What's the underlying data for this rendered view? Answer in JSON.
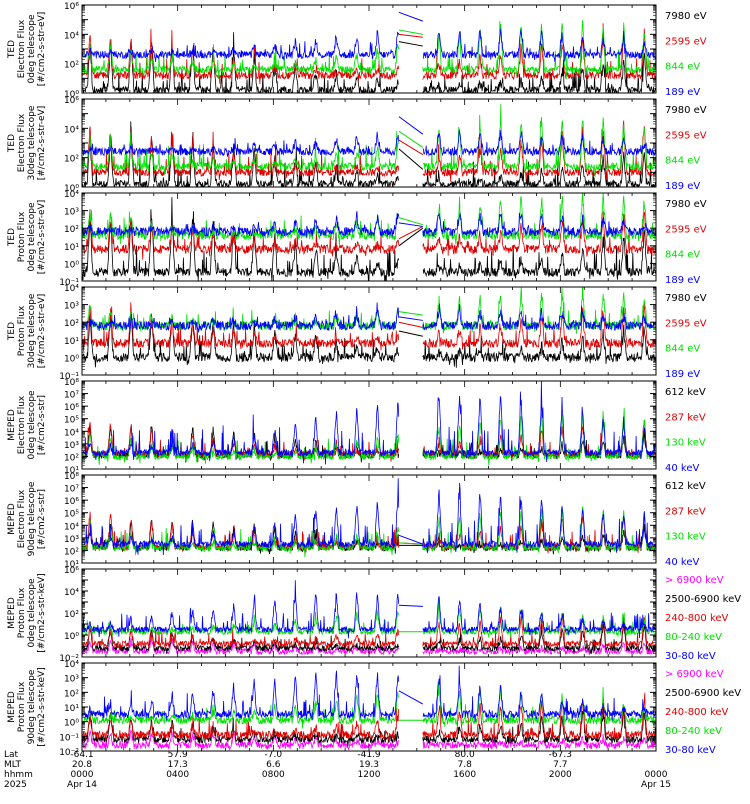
{
  "colors": {
    "black": "#000000",
    "red": "#e00000",
    "green": "#00e000",
    "blue": "#0000ff",
    "magenta": "#ff00ff",
    "axis": "#000000"
  },
  "chart_data": [
    {
      "type": "line",
      "instrument": "TED",
      "ylabel": [
        "TED",
        "Electron Flux",
        "0deg telescope",
        "[#/cm2-s-str-eV]"
      ],
      "yscale": "log",
      "ylim_exp": [
        0,
        6
      ],
      "yticks": [
        "10⁰",
        "10²",
        "10⁴",
        "10⁶"
      ],
      "series": [
        {
          "name": "7980 eV",
          "color": "black",
          "base": 0.2,
          "peak": 3.5,
          "gap_start": 3.5,
          "gap_end": 3.2
        },
        {
          "name": "2595 eV",
          "color": "red",
          "base": 1.2,
          "peak": 4.2,
          "gap_start": 4.0,
          "gap_end": 3.8
        },
        {
          "name": "844 eV",
          "color": "green",
          "base": 1.6,
          "peak": 4.8,
          "gap_start": 4.3,
          "gap_end": 4.0
        },
        {
          "name": "189 eV",
          "color": "blue",
          "base": 2.6,
          "peak": 4.4,
          "gap_start": 5.5,
          "gap_end": 4.9
        }
      ]
    },
    {
      "type": "line",
      "instrument": "TED",
      "ylabel": [
        "TED",
        "Electron Flux",
        "30deg telescope",
        "[#/cm2-s-str-eV]"
      ],
      "yscale": "log",
      "ylim_exp": [
        0,
        6
      ],
      "yticks": [
        "10⁰",
        "10²",
        "10⁴",
        "10⁶"
      ],
      "series": [
        {
          "name": "7980 eV",
          "color": "black",
          "base": 0.2,
          "peak": 3.5,
          "gap_start": 2.6,
          "gap_end": 1.2
        },
        {
          "name": "2595 eV",
          "color": "red",
          "base": 1.0,
          "peak": 4.4,
          "gap_start": 3.2,
          "gap_end": 2.2
        },
        {
          "name": "844 eV",
          "color": "green",
          "base": 1.4,
          "peak": 4.8,
          "gap_start": 3.8,
          "gap_end": 2.7
        },
        {
          "name": "189 eV",
          "color": "blue",
          "base": 2.4,
          "peak": 3.8,
          "gap_start": 4.8,
          "gap_end": 3.6
        }
      ]
    },
    {
      "type": "line",
      "instrument": "TED",
      "ylabel": [
        "TED",
        "Proton Flux",
        "0deg telescope",
        "[#/cm2-s-str-eV]"
      ],
      "yscale": "log",
      "ylim_exp": [
        -1,
        4
      ],
      "yticks": [
        "10⁻¹",
        "10⁰",
        "10¹",
        "10²",
        "10³",
        "10⁴"
      ],
      "series": [
        {
          "name": "7980 eV",
          "color": "black",
          "base": -0.5,
          "peak": 2.8,
          "gap_start": 1.0,
          "gap_end": 2.0
        },
        {
          "name": "2595 eV",
          "color": "red",
          "base": 0.8,
          "peak": 2.9,
          "gap_start": 1.4,
          "gap_end": 2.1
        },
        {
          "name": "844 eV",
          "color": "green",
          "base": 1.6,
          "peak": 3.9,
          "gap_start": 2.6,
          "gap_end": 2.2
        },
        {
          "name": "189 eV",
          "color": "blue",
          "base": 1.8,
          "peak": 2.9,
          "gap_start": 2.3,
          "gap_end": 2.1
        }
      ]
    },
    {
      "type": "line",
      "instrument": "TED",
      "ylabel": [
        "TED",
        "Proton Flux",
        "30deg telescope",
        "[#/cm2-s-str-eV]"
      ],
      "yscale": "log",
      "ylim_exp": [
        -1,
        4
      ],
      "yticks": [
        "10⁻¹",
        "10⁰",
        "10¹",
        "10²",
        "10³",
        "10⁴"
      ],
      "series": [
        {
          "name": "7980 eV",
          "color": "black",
          "base": 0.0,
          "peak": 2.5,
          "gap_start": 1.5,
          "gap_end": 1.2
        },
        {
          "name": "2595 eV",
          "color": "red",
          "base": 0.8,
          "peak": 2.9,
          "gap_start": 2.0,
          "gap_end": 1.7
        },
        {
          "name": "844 eV",
          "color": "green",
          "base": 1.8,
          "peak": 3.7,
          "gap_start": 2.6,
          "gap_end": 2.4
        },
        {
          "name": "189 eV",
          "color": "blue",
          "base": 1.8,
          "peak": 2.8,
          "gap_start": 2.3,
          "gap_end": 2.1
        }
      ]
    },
    {
      "type": "line",
      "instrument": "MEPED",
      "ylabel": [
        "MEPED",
        "Electron Flux",
        "0deg telescope",
        "[#/cm2-s-str]"
      ],
      "yscale": "log",
      "ylim_exp": [
        1,
        8
      ],
      "yticks": [
        "10¹",
        "10²",
        "10³",
        "10⁴",
        "10⁵",
        "10⁶",
        "10⁷",
        "10⁸"
      ],
      "series": [
        {
          "name": "612 keV",
          "color": "black",
          "base": 2.1,
          "peak": 4.5,
          "gap": true
        },
        {
          "name": "287 keV",
          "color": "red",
          "base": 2.2,
          "peak": 5.0,
          "gap": true
        },
        {
          "name": "130 keV",
          "color": "green",
          "base": 2.0,
          "peak": 5.5,
          "gap": true
        },
        {
          "name": "40 keV",
          "color": "blue",
          "base": 2.3,
          "peak": 7.0,
          "gap": true
        }
      ]
    },
    {
      "type": "line",
      "instrument": "MEPED",
      "ylabel": [
        "MEPED",
        "Electron Flux",
        "90deg telescope",
        "[#/cm2-s-str]"
      ],
      "yscale": "log",
      "ylim_exp": [
        1,
        8
      ],
      "yticks": [
        "10¹",
        "10²",
        "10³",
        "10⁴",
        "10⁵",
        "10⁶",
        "10⁷",
        "10⁸"
      ],
      "series": [
        {
          "name": "612 keV",
          "color": "black",
          "base": 2.2,
          "peak": 4.5,
          "gap_start": 2.4,
          "gap_end": 2.4
        },
        {
          "name": "287 keV",
          "color": "red",
          "base": 2.3,
          "peak": 5.2,
          "gap_start": 2.6,
          "gap_end": 2.5
        },
        {
          "name": "130 keV",
          "color": "green",
          "base": 2.2,
          "peak": 5.5,
          "gap_start": 2.6,
          "gap_end": 2.5
        },
        {
          "name": "40 keV",
          "color": "blue",
          "base": 2.5,
          "peak": 6.8,
          "gap_start": 3.2,
          "gap_end": 2.5
        }
      ]
    },
    {
      "type": "line",
      "instrument": "MEPED",
      "ylabel": [
        "MEPED",
        "Proton Flux",
        "0deg telescope",
        "[#/cm2-s-str-keV]"
      ],
      "yscale": "log",
      "ylim_exp": [
        -2,
        6
      ],
      "yticks": [
        "10⁻²",
        "10⁰",
        "10²",
        "10⁴",
        "10⁶"
      ],
      "series": [
        {
          "name": "> 6900 keV",
          "color": "magenta",
          "base": -1.5,
          "peak": -0.5,
          "gap": true
        },
        {
          "name": "2500-6900 keV",
          "color": "black",
          "base": -1.2,
          "peak": 1.0,
          "gap": true
        },
        {
          "name": "240-800 keV",
          "color": "red",
          "base": -0.8,
          "peak": 1.8,
          "gap": true
        },
        {
          "name": "80-240 keV",
          "color": "green",
          "base": 0.3,
          "peak": 2.5,
          "gap_start": 0.3,
          "gap_end": 0.3
        },
        {
          "name": "30-80 keV",
          "color": "blue",
          "base": 0.5,
          "peak": 4.0,
          "gap_start": 2.7,
          "gap_end": 2.6
        }
      ]
    },
    {
      "type": "line",
      "instrument": "MEPED",
      "ylabel": [
        "MEPED",
        "Proton Flux",
        "90deg telescope",
        "[#/cm2-s-str-keV]"
      ],
      "yscale": "log",
      "ylim_exp": [
        -2,
        4
      ],
      "yticks": [
        "10⁻²",
        "10⁻¹",
        "10⁰",
        "10¹",
        "10²",
        "10³",
        "10⁴"
      ],
      "series": [
        {
          "name": "> 6900 keV",
          "color": "magenta",
          "base": -1.6,
          "peak": -0.7,
          "gap": true
        },
        {
          "name": "2500-6900 keV",
          "color": "black",
          "base": -1.2,
          "peak": 0.8,
          "gap": true
        },
        {
          "name": "240-800 keV",
          "color": "red",
          "base": -0.9,
          "peak": 1.5,
          "gap": true
        },
        {
          "name": "80-240 keV",
          "color": "green",
          "base": 0.1,
          "peak": 2.3,
          "gap_start": 0.1,
          "gap_end": 0.1
        },
        {
          "name": "30-80 keV",
          "color": "blue",
          "base": 0.5,
          "peak": 3.4,
          "gap_start": 2.1,
          "gap_end": 1.2
        }
      ]
    }
  ],
  "xaxis": {
    "row_labels": [
      "Lat",
      "MLT",
      "hhmm",
      "2025"
    ],
    "ticks": [
      {
        "lat": "-64.1",
        "mlt": "20.8",
        "hhmm": "0000",
        "date": "Apr 14"
      },
      {
        "lat": "57.9",
        "mlt": "17.3",
        "hhmm": "0400",
        "date": ""
      },
      {
        "lat": "-7.0",
        "mlt": "6.6",
        "hhmm": "0800",
        "date": ""
      },
      {
        "lat": "-41.9",
        "mlt": "19.3",
        "hhmm": "1200",
        "date": ""
      },
      {
        "lat": "80.0",
        "mlt": "7.8",
        "hhmm": "1600",
        "date": ""
      },
      {
        "lat": "-67.3",
        "mlt": "7.7",
        "hhmm": "2000",
        "date": ""
      },
      {
        "lat": "",
        "mlt": "",
        "hhmm": "0000",
        "date": "Apr 15"
      }
    ],
    "data_gap_hhmm": [
      "1315",
      "1415"
    ]
  }
}
